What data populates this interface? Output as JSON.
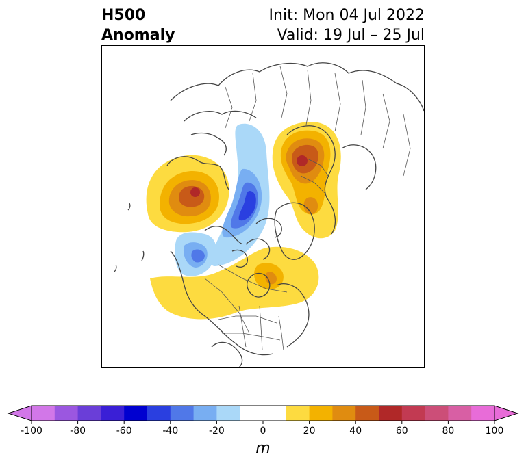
{
  "title": {
    "line1": "H500",
    "line2": "Anomaly",
    "init": "Init: Mon 04 Jul 2022",
    "valid": "Valid: 19 Jul – 25 Jul"
  },
  "colorbar": {
    "units": "m",
    "ticks": [
      -100,
      -80,
      -60,
      -40,
      -20,
      0,
      20,
      40,
      60,
      80,
      100
    ],
    "levels": [
      -100,
      -90,
      -80,
      -70,
      -60,
      -50,
      -40,
      -30,
      -20,
      -10,
      10,
      20,
      30,
      40,
      50,
      60,
      70,
      80,
      90,
      100
    ],
    "colors": [
      "#d277e8",
      "#9b57e0",
      "#6a3ed8",
      "#3a1fd6",
      "#0000d0",
      "#2a3fe0",
      "#5078e8",
      "#78aef2",
      "#aad8f8",
      "#ffffff",
      "#fddb40",
      "#f3b200",
      "#e08c10",
      "#c85a18",
      "#b02828",
      "#c23a52",
      "#cc4e78",
      "#d85fa4",
      "#e86cd8"
    ],
    "under_color": "#d277e8",
    "over_color": "#e86cd8"
  },
  "map": {
    "projection": "north polar stereographic",
    "field": "500 hPa geopotential height anomaly",
    "features": [
      {
        "kind": "ridge",
        "max_anomaly_m": 60,
        "region": "Alaska / Bering"
      },
      {
        "kind": "trough",
        "min_anomaly_m": -50,
        "region": "Arctic Ocean"
      },
      {
        "kind": "trough",
        "min_anomaly_m": -40,
        "region": "Canadian Arctic"
      },
      {
        "kind": "ridge",
        "max_anomaly_m": 60,
        "region": "Scandinavia / NW Russia"
      },
      {
        "kind": "ridge",
        "max_anomaly_m": 30,
        "region": "Eastern Canada / US"
      }
    ]
  }
}
